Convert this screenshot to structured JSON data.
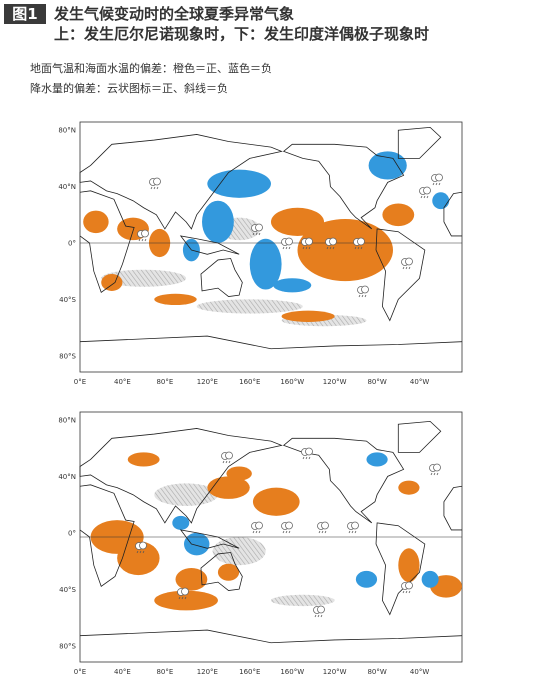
{
  "header": {
    "badge": "图1",
    "title": "发生气候变动时的全球夏季异常气象",
    "subtitle": "上：发生厄尔尼诺现象时，下：发生印度洋偶极子现象时"
  },
  "legend": [
    "地面气温和海面水温的偏差：橙色＝正、蓝色＝负",
    "降水量的偏差：云状图标＝正、斜线＝负"
  ],
  "axes": {
    "lat_labels": [
      "80°N",
      "40°N",
      "0°",
      "40°S",
      "80°S"
    ],
    "lon_labels": [
      "0°E",
      "40°E",
      "80°E",
      "120°E",
      "160°E",
      "160°W",
      "120°W",
      "80°W",
      "40°W"
    ]
  }
}
